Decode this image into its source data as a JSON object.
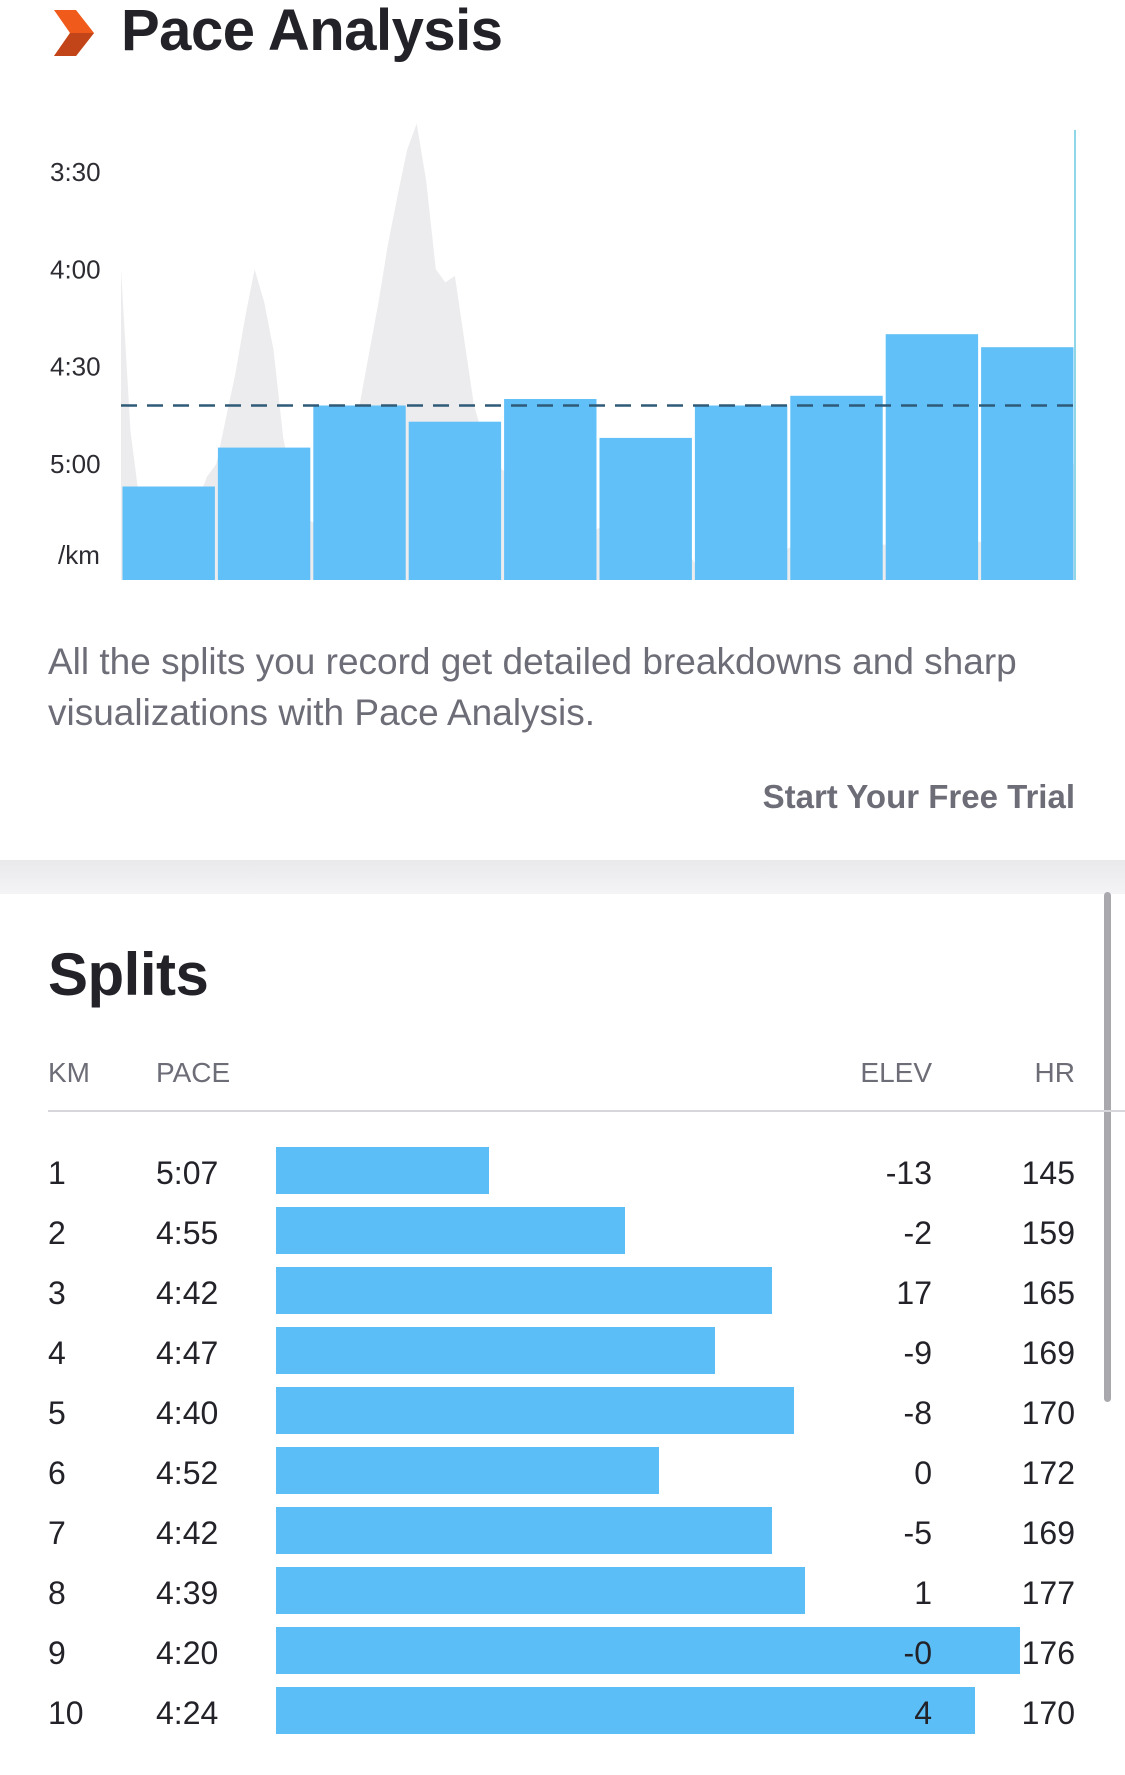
{
  "header": {
    "title": "Pace Analysis",
    "icon": "chevron-right-icon",
    "icon_color": "#f05a1a"
  },
  "chart_data": {
    "type": "bar",
    "title": "",
    "xlabel": "",
    "ylabel": "/km",
    "unit_label": "/km",
    "y_ticks": [
      "3:30",
      "4:00",
      "4:30",
      "5:00"
    ],
    "y_tick_seconds": [
      210,
      240,
      270,
      300
    ],
    "y_inverted": true,
    "y_range_seconds": [
      180,
      330
    ],
    "categories": [
      "1",
      "2",
      "3",
      "4",
      "5",
      "6",
      "7",
      "8",
      "9",
      "10"
    ],
    "values": [
      "5:07",
      "4:55",
      "4:42",
      "4:47",
      "4:40",
      "4:52",
      "4:42",
      "4:39",
      "4:20",
      "4:24"
    ],
    "values_seconds": [
      307,
      295,
      282,
      287,
      280,
      292,
      282,
      279,
      260,
      264
    ],
    "average_pace_seconds": 282,
    "average_line": "dashed",
    "grid": false,
    "bar_color": "#5bbef7",
    "background_series": {
      "name": "",
      "color": "#ececee",
      "km": [
        0,
        0.1,
        0.2,
        0.3,
        0.4,
        0.5,
        0.6,
        0.7,
        0.8,
        0.9,
        1.0,
        1.1,
        1.2,
        1.3,
        1.4,
        1.5,
        1.6,
        1.7,
        1.8,
        1.9,
        2.0,
        2.1,
        2.2,
        2.3,
        2.4,
        2.5,
        2.6,
        2.7,
        2.8,
        2.9,
        3.0,
        3.1,
        3.2,
        3.3,
        3.4,
        3.5,
        3.6,
        3.7,
        3.8,
        3.9,
        4.0,
        4.1,
        4.2,
        4.3,
        4.4,
        4.5,
        4.6,
        4.7,
        4.8,
        4.9,
        5.0,
        5.1,
        5.2,
        5.3,
        5.4,
        5.5,
        5.6,
        5.7,
        5.8,
        5.9,
        6.0,
        6.1,
        6.2,
        6.3,
        6.4,
        6.5,
        6.6,
        6.7,
        6.8,
        6.9,
        7.0,
        7.2,
        7.5,
        7.8,
        8.0,
        8.3,
        8.5,
        8.8,
        9.0,
        9.3,
        9.5,
        9.7,
        9.9,
        10.0
      ],
      "pace_seconds": [
        240,
        290,
        313,
        318,
        316,
        314,
        316,
        317,
        312,
        304,
        300,
        286,
        272,
        255,
        240,
        250,
        265,
        292,
        306,
        315,
        318,
        318,
        316,
        305,
        295,
        282,
        266,
        250,
        232,
        217,
        203,
        195,
        213,
        240,
        244,
        242,
        262,
        282,
        292,
        298,
        302,
        303,
        306,
        308,
        310,
        326,
        300,
        306,
        314,
        322,
        320,
        318,
        320,
        316,
        318,
        320,
        318,
        300,
        312,
        326,
        330,
        334,
        336,
        334,
        330,
        328,
        332,
        328,
        326,
        328,
        326,
        324,
        325,
        323,
        325,
        324,
        322,
        325,
        324,
        328,
        325,
        316,
        300,
        300
      ]
    }
  },
  "description": "All the splits you record get detailed breakdowns and sharp visualizations with Pace Analysis.",
  "cta": {
    "label": "Start Your Free Trial"
  },
  "splits": {
    "title": "Splits",
    "headers": {
      "km": "KM",
      "pace": "PACE",
      "elev": "ELEV",
      "hr": "HR"
    },
    "rows": [
      {
        "km": "1",
        "pace": "5:07",
        "pace_seconds": 307,
        "elev": "-13",
        "hr": "145"
      },
      {
        "km": "2",
        "pace": "4:55",
        "pace_seconds": 295,
        "elev": "-2",
        "hr": "159"
      },
      {
        "km": "3",
        "pace": "4:42",
        "pace_seconds": 282,
        "elev": "17",
        "hr": "165"
      },
      {
        "km": "4",
        "pace": "4:47",
        "pace_seconds": 287,
        "elev": "-9",
        "hr": "169"
      },
      {
        "km": "5",
        "pace": "4:40",
        "pace_seconds": 280,
        "elev": "-8",
        "hr": "170"
      },
      {
        "km": "6",
        "pace": "4:52",
        "pace_seconds": 292,
        "elev": "0",
        "hr": "172"
      },
      {
        "km": "7",
        "pace": "4:42",
        "pace_seconds": 282,
        "elev": "-5",
        "hr": "169"
      },
      {
        "km": "8",
        "pace": "4:39",
        "pace_seconds": 279,
        "elev": "1",
        "hr": "177"
      },
      {
        "km": "9",
        "pace": "4:20",
        "pace_seconds": 260,
        "elev": "-0",
        "hr": "176"
      },
      {
        "km": "10",
        "pace": "4:24",
        "pace_seconds": 264,
        "elev": "4",
        "hr": "170"
      }
    ],
    "bar_color": "#5bbef7"
  }
}
